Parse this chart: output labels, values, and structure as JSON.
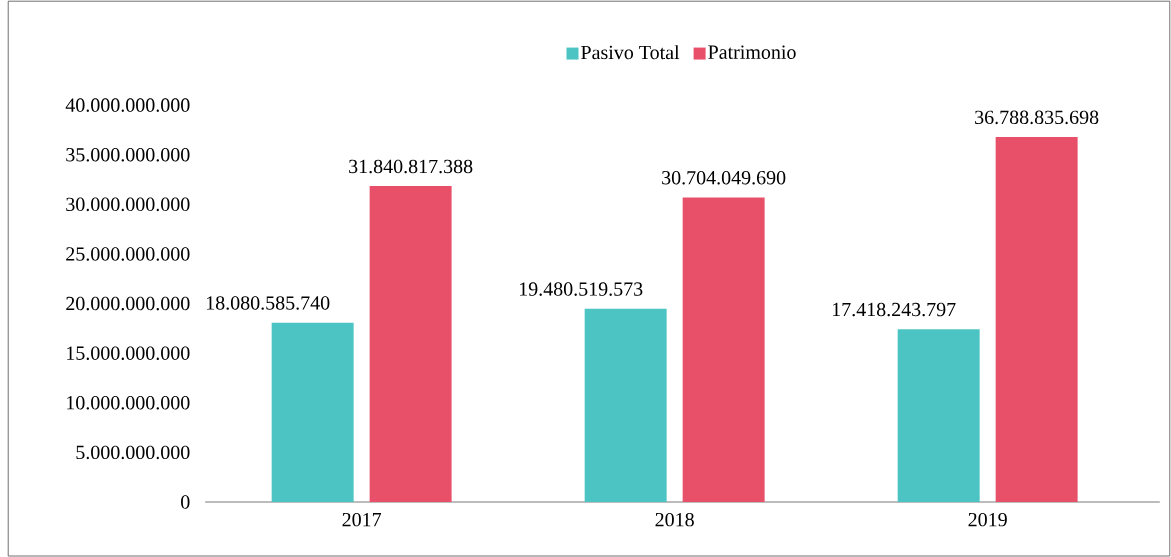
{
  "chart_data": {
    "type": "bar",
    "categories": [
      "2017",
      "2018",
      "2019"
    ],
    "series": [
      {
        "name": "Pasivo Total",
        "color": "#4cc4c4",
        "values": [
          18080585740,
          19480519573,
          17418243797
        ],
        "value_labels": [
          "18.080.585.740",
          "19.480.519.573",
          "17.418.243.797"
        ]
      },
      {
        "name": "Patrimonio",
        "color": "#e8506a",
        "values": [
          31840817388,
          30704049690,
          36788835698
        ],
        "value_labels": [
          "31.840.817.388",
          "30.704.049.690",
          "36.788.835.698"
        ]
      }
    ],
    "ylim": [
      0,
      40000000000
    ],
    "yticks": [
      {
        "value": 0,
        "label": "0"
      },
      {
        "value": 5000000000,
        "label": "5.000.000.000"
      },
      {
        "value": 10000000000,
        "label": "10.000.000.000"
      },
      {
        "value": 15000000000,
        "label": "15.000.000.000"
      },
      {
        "value": 20000000000,
        "label": "20.000.000.000"
      },
      {
        "value": 25000000000,
        "label": "25.000.000.000"
      },
      {
        "value": 30000000000,
        "label": "30.000.000.000"
      },
      {
        "value": 35000000000,
        "label": "35.000.000.000"
      },
      {
        "value": 40000000000,
        "label": "40.000.000.000"
      }
    ],
    "legend": "top",
    "grid": false
  }
}
